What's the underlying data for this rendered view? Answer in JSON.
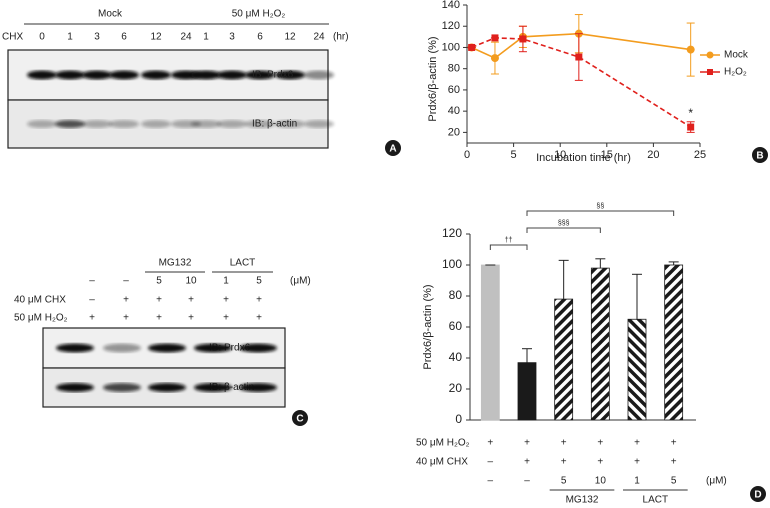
{
  "panel_labels": [
    "A",
    "B",
    "C",
    "D"
  ],
  "blot_a": {
    "groups": [
      {
        "name": "Mock",
        "from": 0,
        "to": 5
      },
      {
        "name": "50 μM H₂O₂",
        "from": 6,
        "to": 10
      }
    ],
    "row_label": "CHX",
    "lanes": [
      "0",
      "1",
      "3",
      "6",
      "12",
      "24",
      "1",
      "3",
      "6",
      "12",
      "24"
    ],
    "unit": "(hr)",
    "bands": [
      "IB: Prdx6",
      "IB: β-actin"
    ]
  },
  "blot_c": {
    "groups": [
      {
        "name": "MG132",
        "from": 2,
        "to": 3
      },
      {
        "name": "LACT",
        "from": 4,
        "to": 5
      }
    ],
    "doses": [
      "–",
      "–",
      "5",
      "10",
      "1",
      "5"
    ],
    "dose_unit": "(μM)",
    "rows": [
      {
        "label": "40 μM CHX",
        "cells": [
          "–",
          "+",
          "+",
          "+",
          "+",
          "+"
        ]
      },
      {
        "label": "50 μM H₂O₂",
        "cells": [
          "+",
          "+",
          "+",
          "+",
          "+",
          "+"
        ]
      }
    ],
    "bands": [
      "IB: Prdx6",
      "IB: β-actin"
    ]
  },
  "chart_data": [
    {
      "type": "line",
      "x_label": "Incubation time (hr)",
      "y_label": "Prdx6/β-actin (%)",
      "x": [
        0.5,
        3,
        6,
        12,
        24
      ],
      "series": [
        {
          "name": "Mock",
          "color": "#f39c1e",
          "marker": "circle",
          "dashed": false,
          "values": [
            100,
            90,
            110,
            113,
            98
          ],
          "errors": [
            0,
            15,
            10,
            18,
            25
          ]
        },
        {
          "name": "H₂O₂",
          "color": "#e0201c",
          "marker": "square",
          "dashed": true,
          "values": [
            100,
            109,
            108,
            91,
            25
          ],
          "errors": [
            0,
            0,
            12,
            22,
            5
          ]
        }
      ],
      "annotations": [
        {
          "text": "*",
          "x": 24
        }
      ],
      "xlim": [
        0,
        25
      ],
      "xticks": [
        0,
        5,
        10,
        15,
        20,
        25
      ],
      "ylim": [
        10,
        140
      ],
      "yticks": [
        20,
        40,
        60,
        80,
        100,
        120,
        140
      ],
      "legend": "right"
    },
    {
      "type": "bar",
      "y_label": "Prdx6/β-actin (%)",
      "values": [
        100,
        37,
        78,
        98,
        65,
        100
      ],
      "errors": [
        0,
        9,
        25,
        6,
        29,
        2
      ],
      "colors": [
        "#c0c0c0",
        "#1a1a1a",
        "#1a1a1a",
        "#1a1a1a",
        "#1a1a1a",
        "#1a1a1a"
      ],
      "patterns": [
        "solid",
        "solid",
        "diagonal",
        "diagonal",
        "back-diagonal",
        "diagonal"
      ],
      "ylim": [
        0,
        120
      ],
      "yticks": [
        0,
        20,
        40,
        60,
        80,
        100,
        120
      ],
      "brackets": [
        {
          "text": "††",
          "from": 0,
          "to": 1
        },
        {
          "text": "§§§",
          "from": 1,
          "to": 3
        },
        {
          "text": "§§",
          "from": 1,
          "to": 5
        }
      ],
      "treatments": [
        {
          "label": "50 μM H₂O₂",
          "cells": [
            "+",
            "+",
            "+",
            "+",
            "+",
            "+"
          ]
        },
        {
          "label": "40 μM CHX",
          "cells": [
            "–",
            "+",
            "+",
            "+",
            "+",
            "+"
          ]
        }
      ],
      "doses": [
        "–",
        "–",
        "5",
        "10",
        "1",
        "5"
      ],
      "dose_unit": "(μM)",
      "groups": [
        {
          "name": "MG132",
          "from": 2,
          "to": 3
        },
        {
          "name": "LACT",
          "from": 4,
          "to": 5
        }
      ]
    }
  ]
}
